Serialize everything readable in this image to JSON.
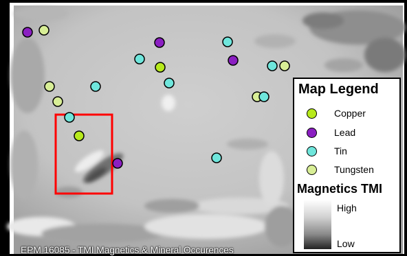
{
  "map": {
    "caption": "EPM 16085 - TMI Magnetics & Mineral Occurences"
  },
  "legend": {
    "title": "Map Legend",
    "items": [
      {
        "label": "Copper",
        "color": "#b7ea1c"
      },
      {
        "label": "Lead",
        "color": "#8b1fc2"
      },
      {
        "label": "Tin",
        "color": "#6fe6dc"
      },
      {
        "label": "Tungsten",
        "color": "#d8ee96"
      }
    ],
    "magnetics_title": "Magnetics TMI",
    "high_label": "High",
    "low_label": "Low"
  },
  "colors": {
    "highlight_box": "#ff0000",
    "map_background": "#c8c8c8"
  }
}
